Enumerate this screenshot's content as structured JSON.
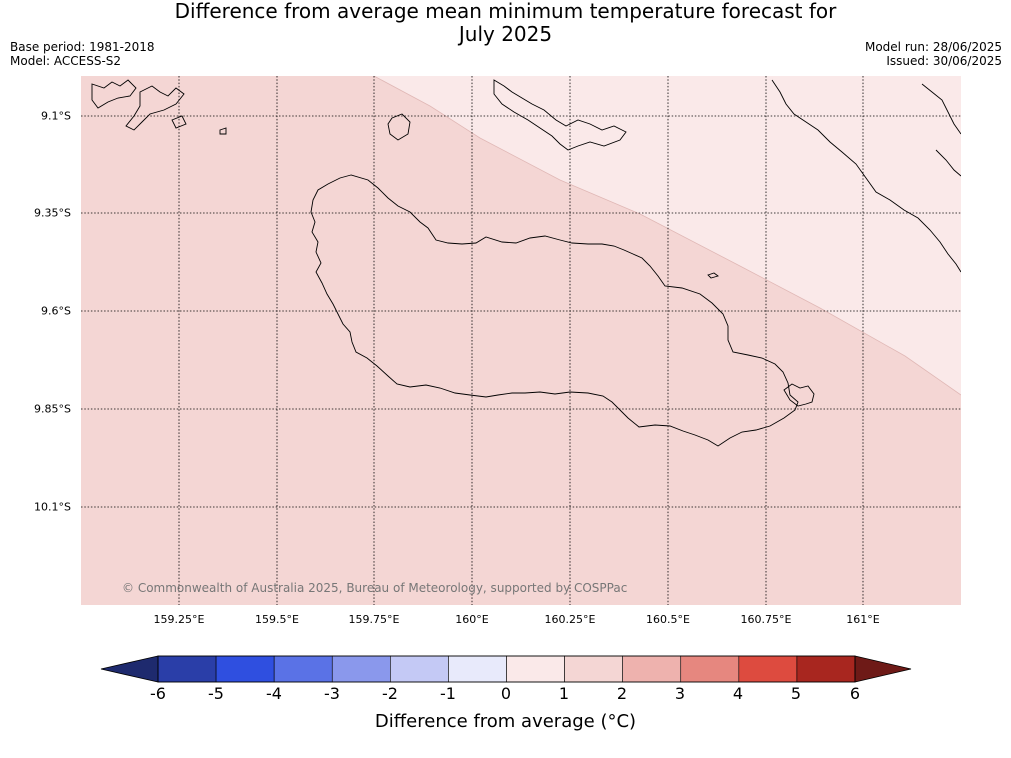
{
  "header": {
    "title_line1": "Difference from average mean minimum temperature forecast for",
    "title_line2": "July 2025",
    "base_period": "Base period: 1981-2018",
    "model": "Model: ACCESS-S2",
    "model_run": "Model run: 28/06/2025",
    "issued": "Issued: 30/06/2025"
  },
  "map": {
    "longitude_labels": [
      "159.25°E",
      "159.5°E",
      "159.75°E",
      "160°E",
      "160.25°E",
      "160.5°E",
      "160.75°E",
      "161°E"
    ],
    "latitude_labels": [
      "9.1°S",
      "9.35°S",
      "9.6°S",
      "9.85°S",
      "10.1°S"
    ],
    "copyright": "© Commonwealth of Australia 2025, Bureau of Meteorology, supported by COSPPac",
    "regions": [
      {
        "name": "1 to 2",
        "color": "#f4d6d4"
      },
      {
        "name": "0 to 1",
        "color": "#fae9e9"
      }
    ]
  },
  "colorbar": {
    "title": "Difference from average (°C)",
    "ticks": [
      "-6",
      "-5",
      "-4",
      "-3",
      "-2",
      "-1",
      "0",
      "1",
      "2",
      "3",
      "4",
      "5",
      "6"
    ],
    "below_color": "#1e2a6e",
    "above_color": "#6e1a17",
    "bins": [
      {
        "from": -6,
        "to": -5,
        "color": "#2a3ea8"
      },
      {
        "from": -5,
        "to": -4,
        "color": "#2f4fe0"
      },
      {
        "from": -4,
        "to": -3,
        "color": "#5a72e6"
      },
      {
        "from": -3,
        "to": -2,
        "color": "#8a98ec"
      },
      {
        "from": -2,
        "to": -1,
        "color": "#c4c9f5"
      },
      {
        "from": -1,
        "to": 0,
        "color": "#e8eafb"
      },
      {
        "from": 0,
        "to": 1,
        "color": "#fae9e9"
      },
      {
        "from": 1,
        "to": 2,
        "color": "#f4d6d4"
      },
      {
        "from": 2,
        "to": 3,
        "color": "#eeb2ae"
      },
      {
        "from": 3,
        "to": 4,
        "color": "#e6877f"
      },
      {
        "from": 4,
        "to": 5,
        "color": "#dd4b3f"
      },
      {
        "from": 5,
        "to": 6,
        "color": "#a8261f"
      }
    ]
  }
}
